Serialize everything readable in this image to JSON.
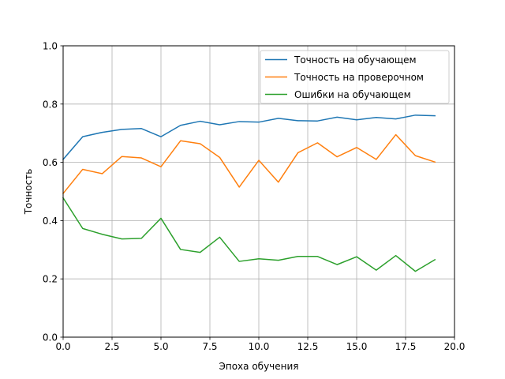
{
  "chart_data": {
    "type": "line",
    "xlabel": "Эпоха обучения",
    "ylabel": "Точность",
    "xlim": [
      0,
      20
    ],
    "ylim": [
      0,
      1
    ],
    "xticks": [
      "0.0",
      "2.5",
      "5.0",
      "7.5",
      "10.0",
      "12.5",
      "15.0",
      "17.5",
      "20.0"
    ],
    "yticks": [
      "0.0",
      "0.2",
      "0.4",
      "0.6",
      "0.8",
      "1.0"
    ],
    "grid": true,
    "legend_position": "top-right",
    "x": [
      0,
      1,
      2,
      3,
      4,
      5,
      6,
      7,
      8,
      9,
      10,
      11,
      12,
      13,
      14,
      15,
      16,
      17,
      18,
      19
    ],
    "series": [
      {
        "name": "Точность на обучающем",
        "color": "#1f77b4",
        "values": [
          0.61,
          0.688,
          0.703,
          0.713,
          0.716,
          0.688,
          0.727,
          0.741,
          0.729,
          0.74,
          0.738,
          0.751,
          0.743,
          0.742,
          0.755,
          0.746,
          0.754,
          0.749,
          0.762,
          0.76
        ]
      },
      {
        "name": "Точность на проверочном",
        "color": "#ff7f0e",
        "values": [
          0.493,
          0.576,
          0.561,
          0.62,
          0.615,
          0.585,
          0.674,
          0.664,
          0.617,
          0.515,
          0.607,
          0.532,
          0.633,
          0.667,
          0.619,
          0.651,
          0.61,
          0.695,
          0.623,
          0.601
        ]
      },
      {
        "name": "Ошибки на обучающем",
        "color": "#2ca02c",
        "values": [
          0.478,
          0.373,
          0.353,
          0.337,
          0.339,
          0.408,
          0.301,
          0.291,
          0.343,
          0.26,
          0.269,
          0.264,
          0.277,
          0.277,
          0.249,
          0.276,
          0.23,
          0.28,
          0.226,
          0.266
        ]
      }
    ]
  }
}
